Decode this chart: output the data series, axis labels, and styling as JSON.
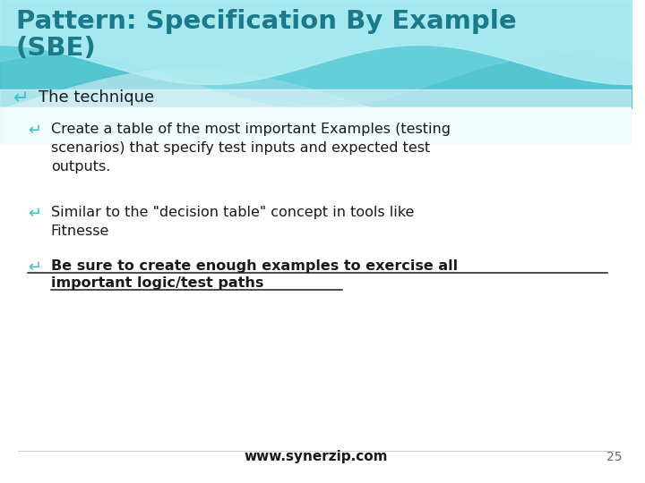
{
  "title_line1": "Pattern: Specification By Example",
  "title_line2": "(SBE)",
  "title_color": "#1a7a8a",
  "bg_color": "#ffffff",
  "bullet_color": "#3bbfcc",
  "text_color": "#1a1a1a",
  "footer_text": "www.synerzip.com",
  "page_number": "25",
  "l1_bullet_text": "The technique",
  "l2_b1": "Create a table of the most important Examples (testing\nscenarios) that specify test inputs and expected test\noutputs.",
  "l2_b2": "Similar to the \"decision table\" concept in tools like\nFitnesse",
  "l2_b3_line1": "Be sure to create enough examples to exercise all",
  "l2_b3_line2": "important logic/test paths"
}
